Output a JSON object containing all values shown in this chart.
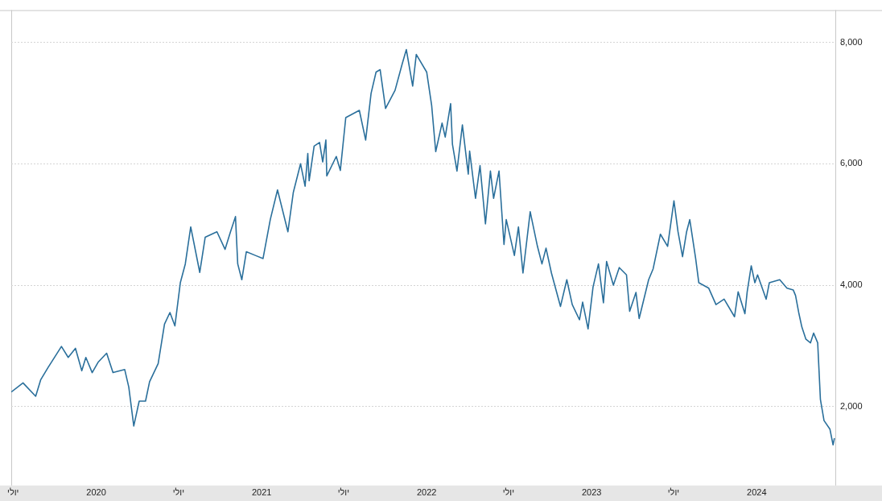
{
  "chart_data": {
    "type": "line",
    "xlim": [
      "2019-06-27",
      "2024-06-23"
    ],
    "ylim": [
      700,
      8530
    ],
    "xticks": [
      {
        "value": "2019-07-01",
        "label": "יולי"
      },
      {
        "value": "2020-01-01",
        "label": "2020"
      },
      {
        "value": "2020-07-01",
        "label": "יולי"
      },
      {
        "value": "2021-01-01",
        "label": "2021"
      },
      {
        "value": "2021-07-01",
        "label": "יולי"
      },
      {
        "value": "2022-01-01",
        "label": "2022"
      },
      {
        "value": "2022-07-01",
        "label": "יולי"
      },
      {
        "value": "2023-01-01",
        "label": "2023"
      },
      {
        "value": "2023-07-01",
        "label": "יולי"
      },
      {
        "value": "2024-01-01",
        "label": "2024"
      }
    ],
    "yticks": [
      {
        "value": 2000,
        "label": "2,000"
      },
      {
        "value": 4000,
        "label": "4,000"
      },
      {
        "value": 6000,
        "label": "6,000"
      },
      {
        "value": 8000,
        "label": "8,000"
      }
    ],
    "grid": "y",
    "marker": "none",
    "line_style": "solid",
    "x": [
      "2019-06-27",
      "2019-07-23",
      "2019-08-20",
      "2019-08-31",
      "2019-09-16",
      "2019-10-16",
      "2019-10-31",
      "2019-11-16",
      "2019-11-30",
      "2019-12-09",
      "2019-12-23",
      "2020-01-05",
      "2020-01-24",
      "2020-02-07",
      "2020-03-04",
      "2020-03-13",
      "2020-03-24",
      "2020-04-05",
      "2020-04-19",
      "2020-04-28",
      "2020-05-17",
      "2020-05-31",
      "2020-06-12",
      "2020-06-23",
      "2020-07-05",
      "2020-07-16",
      "2020-07-28",
      "2020-08-17",
      "2020-08-29",
      "2020-09-24",
      "2020-10-12",
      "2020-10-24",
      "2020-11-04",
      "2020-11-09",
      "2020-11-18",
      "2020-11-28",
      "2020-12-18",
      "2021-01-04",
      "2021-01-20",
      "2021-02-05",
      "2021-02-28",
      "2021-03-12",
      "2021-03-28",
      "2021-04-07",
      "2021-04-13",
      "2021-04-16",
      "2021-04-27",
      "2021-05-09",
      "2021-05-16",
      "2021-05-23",
      "2021-05-25",
      "2021-06-15",
      "2021-06-24",
      "2021-07-06",
      "2021-08-05",
      "2021-08-19",
      "2021-08-31",
      "2021-09-11",
      "2021-09-20",
      "2021-10-02",
      "2021-10-23",
      "2021-11-08",
      "2021-11-17",
      "2021-12-01",
      "2021-12-09",
      "2022-01-01",
      "2022-01-12",
      "2022-01-21",
      "2022-02-04",
      "2022-02-11",
      "2022-02-23",
      "2022-02-27",
      "2022-03-09",
      "2022-03-21",
      "2022-04-03",
      "2022-04-06",
      "2022-04-19",
      "2022-04-29",
      "2022-05-11",
      "2022-05-22",
      "2022-05-29",
      "2022-06-10",
      "2022-06-21",
      "2022-06-26",
      "2022-07-14",
      "2022-07-23",
      "2022-08-02",
      "2022-08-18",
      "2022-09-03",
      "2022-09-13",
      "2022-09-22",
      "2022-10-04",
      "2022-10-24",
      "2022-11-07",
      "2022-11-19",
      "2022-12-05",
      "2022-12-12",
      "2022-12-24",
      "2023-01-04",
      "2023-01-16",
      "2023-01-27",
      "2023-02-03",
      "2023-02-18",
      "2023-03-03",
      "2023-03-19",
      "2023-03-26",
      "2023-04-09",
      "2023-04-16",
      "2023-05-07",
      "2023-05-17",
      "2023-06-02",
      "2023-06-18",
      "2023-07-02",
      "2023-07-11",
      "2023-07-21",
      "2023-07-30",
      "2023-08-06",
      "2023-08-19",
      "2023-08-26",
      "2023-09-17",
      "2023-10-03",
      "2023-10-21",
      "2023-11-13",
      "2023-11-21",
      "2023-12-06",
      "2023-12-11",
      "2023-12-20",
      "2023-12-28",
      "2024-01-03",
      "2024-01-22",
      "2024-01-29",
      "2024-02-21",
      "2024-03-08",
      "2024-03-22",
      "2024-03-27",
      "2024-04-03",
      "2024-04-10",
      "2024-04-19",
      "2024-04-29",
      "2024-05-06",
      "2024-05-15",
      "2024-05-21",
      "2024-05-29",
      "2024-06-11",
      "2024-06-18",
      "2024-06-21"
    ],
    "series": [
      {
        "color": "#2a6f9b",
        "values": [
          2240,
          2390,
          2170,
          2440,
          2640,
          2990,
          2810,
          2960,
          2590,
          2810,
          2560,
          2730,
          2880,
          2560,
          2610,
          2320,
          1680,
          2090,
          2090,
          2410,
          2710,
          3360,
          3550,
          3330,
          4040,
          4350,
          4960,
          4210,
          4790,
          4880,
          4590,
          4880,
          5130,
          4350,
          4090,
          4550,
          4490,
          4440,
          5080,
          5570,
          4880,
          5530,
          6000,
          5630,
          6170,
          5720,
          6290,
          6350,
          6030,
          6390,
          5800,
          6120,
          5890,
          6760,
          6880,
          6390,
          7160,
          7510,
          7550,
          6910,
          7210,
          7650,
          7880,
          7280,
          7800,
          7510,
          6960,
          6200,
          6670,
          6440,
          6990,
          6320,
          5880,
          6640,
          5830,
          6210,
          5430,
          5970,
          5010,
          5880,
          5430,
          5880,
          4670,
          5080,
          4490,
          4960,
          4200,
          5210,
          4640,
          4350,
          4610,
          4200,
          3650,
          4090,
          3680,
          3430,
          3720,
          3280,
          3970,
          4350,
          3710,
          4390,
          4000,
          4290,
          4170,
          3570,
          3880,
          3450,
          4090,
          4270,
          4840,
          4640,
          5390,
          4880,
          4470,
          4880,
          5080,
          4440,
          4040,
          3950,
          3680,
          3770,
          3480,
          3890,
          3530,
          3890,
          4320,
          4040,
          4170,
          3770,
          4040,
          4090,
          3950,
          3920,
          3830,
          3550,
          3310,
          3110,
          3050,
          3210,
          3050,
          2120,
          1770,
          1630,
          1370,
          1480
        ]
      }
    ]
  }
}
